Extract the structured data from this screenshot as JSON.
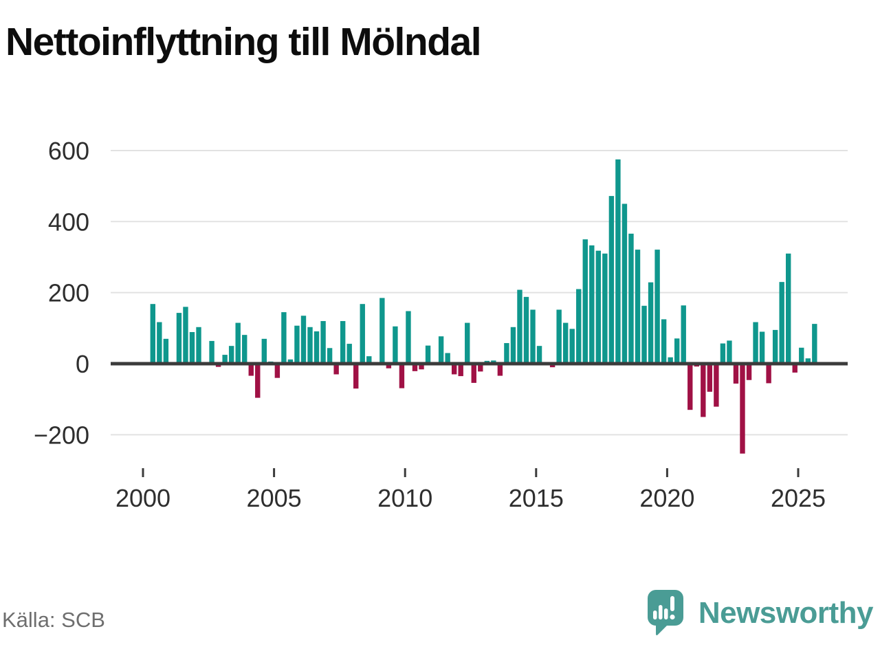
{
  "title": "Nettoinflyttning till Mölndal",
  "source": "Källa: SCB",
  "branding": {
    "name": "Newsworthy"
  },
  "colors": {
    "bar_positive": "#0f978d",
    "bar_negative": "#a01145",
    "axis_line": "#3b3b3b",
    "gridline": "#e2e2e2",
    "tick_label": "#2e2e2e",
    "title_text": "#0d0d0d",
    "source_text": "#6e6e6e",
    "brand_teal": "#4a9c95",
    "background": "#ffffff"
  },
  "chart_data": {
    "type": "bar",
    "title": "Nettoinflyttning till Mölndal",
    "frequency": "quarterly",
    "start_period": "2000-Q1",
    "values": [
      0,
      168,
      117,
      70,
      0,
      143,
      160,
      89,
      103,
      0,
      64,
      -9,
      25,
      50,
      115,
      81,
      -34,
      -96,
      70,
      6,
      -40,
      145,
      12,
      107,
      135,
      103,
      91,
      120,
      44,
      -30,
      120,
      56,
      -70,
      168,
      21,
      0,
      185,
      -13,
      105,
      -69,
      148,
      -21,
      -16,
      51,
      4,
      77,
      30,
      -30,
      -35,
      115,
      -54,
      -22,
      8,
      9,
      -34,
      58,
      103,
      208,
      188,
      152,
      50,
      4,
      -10,
      152,
      115,
      98,
      210,
      350,
      333,
      318,
      310,
      472,
      575,
      450,
      366,
      321,
      163,
      229,
      321,
      125,
      18,
      71,
      164,
      -130,
      -8,
      -150,
      -79,
      -121,
      57,
      65,
      -56,
      -253,
      -46,
      117,
      90,
      -55,
      95,
      230,
      310,
      -25,
      45,
      15,
      112
    ],
    "x_tick_years": [
      2000,
      2005,
      2010,
      2015,
      2020,
      2025
    ],
    "x_tick_labels": [
      "2000",
      "2005",
      "2010",
      "2015",
      "2020",
      "2025"
    ],
    "y_ticks": [
      600,
      400,
      200,
      0,
      -200
    ],
    "y_tick_labels": [
      "600",
      "400",
      "200",
      "0",
      "−200"
    ],
    "ylim": [
      -280,
      640
    ],
    "grid": "horizontal",
    "legend": "none",
    "bar_color_positive": "#0f978d",
    "bar_color_negative": "#a01145"
  }
}
